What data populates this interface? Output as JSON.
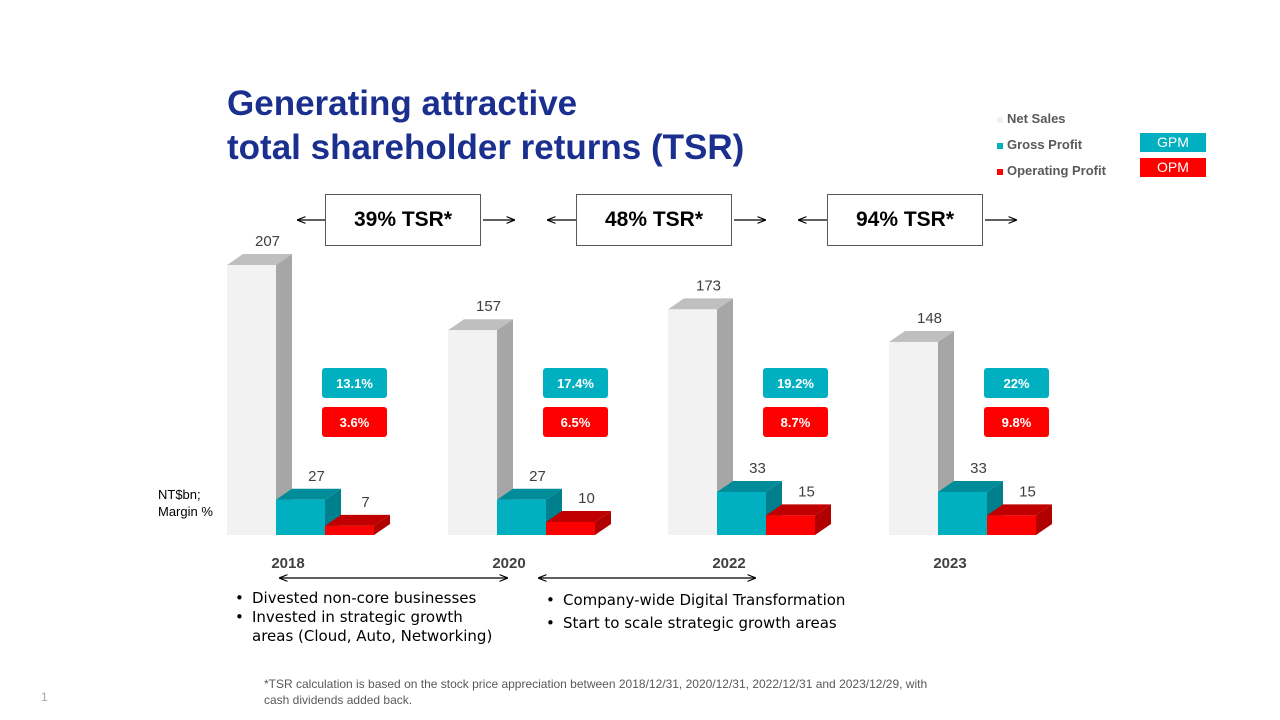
{
  "slide": {
    "title_line1": "Generating attractive",
    "title_line2": "total shareholder returns (TSR)",
    "unit_line1": "NT$bn;",
    "unit_line2": "Margin  %",
    "page_number": "1",
    "footnote": "*TSR calculation  is based on the stock price appreciation  between  2018/12/31, 2020/12/31, 2022/12/31 and 2023/12/29, with cash dividends  added back."
  },
  "legend": {
    "net_sales": "Net Sales",
    "gross_profit": "Gross Profit",
    "operating_profit": "Operating Profit",
    "gpm": "GPM",
    "opm": "OPM"
  },
  "tsr": [
    {
      "label": "39%  TSR*"
    },
    {
      "label": "48%  TSR*"
    },
    {
      "label": "94%  TSR*"
    }
  ],
  "bullets_left": [
    "Divested non-core businesses",
    "Invested in strategic growth",
    "areas (Cloud, Auto, Networking)"
  ],
  "bullets_right": [
    "Company-wide Digital Transformation",
    "Start to scale strategic growth areas"
  ],
  "colors": {
    "title": "#1b2f8f",
    "net_sales_front": "#f2f2f2",
    "net_sales_side": "#a6a6a6",
    "net_sales_top": "#bfbfbf",
    "gross_front": "#00b0c0",
    "gross_side": "#007f8c",
    "gross_top": "#008c99",
    "op_front": "#ff0000",
    "op_side": "#b00000",
    "op_top": "#c00000",
    "gpm_badge": "#00b0c0",
    "opm_badge": "#ff0000"
  },
  "chart_data": {
    "type": "bar",
    "title": "Generating attractive total shareholder returns (TSR)",
    "ylabel": "NT$bn; Margin %",
    "ylim": [
      0,
      207
    ],
    "categories": [
      "2018",
      "2020",
      "2022",
      "2023"
    ],
    "series": [
      {
        "name": "Net Sales",
        "values": [
          207,
          157,
          173,
          148
        ]
      },
      {
        "name": "Gross Profit",
        "values": [
          27,
          27,
          33,
          33
        ]
      },
      {
        "name": "Operating Profit",
        "values": [
          7,
          10,
          15,
          15
        ]
      }
    ],
    "margins": {
      "GPM": [
        "13.1%",
        "17.4%",
        "19.2%",
        "22%"
      ],
      "OPM": [
        "3.6%",
        "6.5%",
        "8.7%",
        "9.8%"
      ]
    }
  }
}
